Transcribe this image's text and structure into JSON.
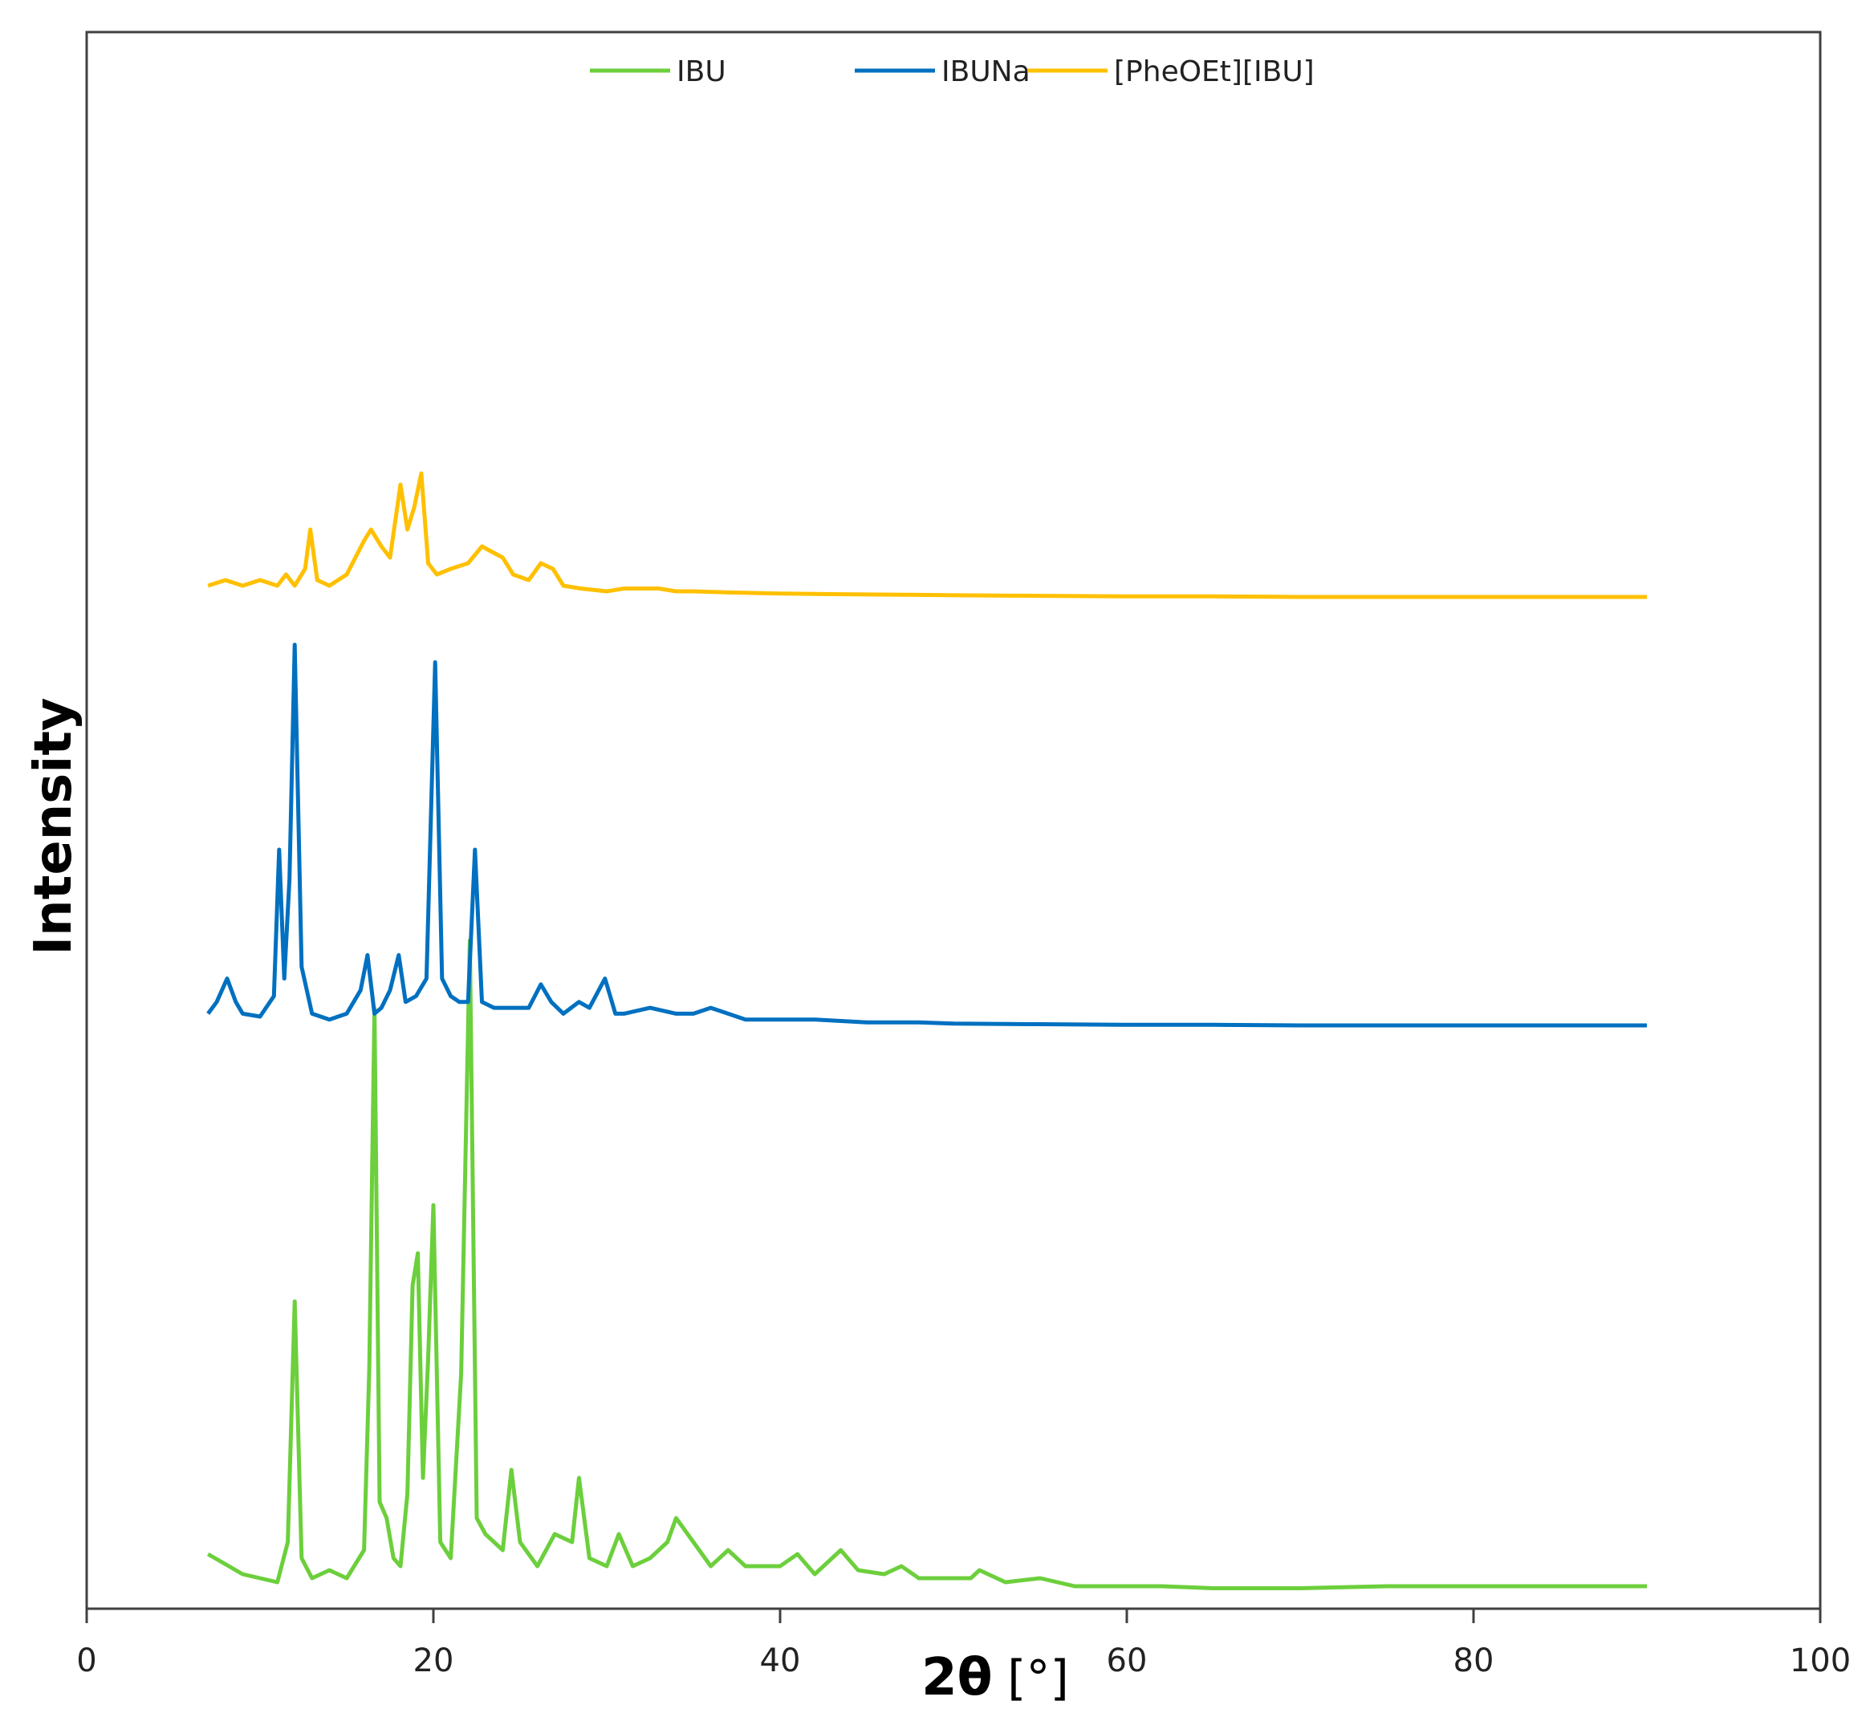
{
  "chart_data": {
    "type": "line",
    "xlabel": "2θ",
    "xunit": "[°]",
    "ylabel": "Intensity",
    "xlim": [
      0,
      100
    ],
    "xticks": [
      "0",
      "20",
      "40",
      "60",
      "80",
      "100"
    ],
    "y_tick_labels_shown": false,
    "grid": false,
    "legend_position": "top-center",
    "series": [
      {
        "name": "IBU",
        "color": "#6CCF3C",
        "x": [
          7,
          9,
          11,
          11.6,
          12.0,
          12.4,
          13,
          14,
          15,
          16,
          16.3,
          16.6,
          16.9,
          17.3,
          17.7,
          18.1,
          18.5,
          18.8,
          19.1,
          19.4,
          19.7,
          20.0,
          20.4,
          21,
          21.6,
          22.1,
          22.5,
          23,
          24,
          24.5,
          25,
          26,
          27,
          28,
          28.4,
          29,
          30,
          30.7,
          31.5,
          32.5,
          33.5,
          34,
          35,
          36,
          37,
          38,
          40,
          41,
          42,
          43.5,
          44.5,
          46,
          47,
          48,
          50,
          51,
          51.5,
          53,
          55,
          57,
          60,
          62,
          65,
          70,
          75,
          80,
          85,
          90
        ],
        "y": [
          9,
          4,
          2,
          12,
          72,
          8,
          3,
          5,
          3,
          10,
          55,
          145,
          22,
          18,
          8,
          6,
          24,
          76,
          84,
          28,
          58,
          96,
          12,
          8,
          54,
          162,
          18,
          14,
          10,
          30,
          12,
          6,
          14,
          12,
          28,
          8,
          6,
          14,
          6,
          8,
          12,
          18,
          12,
          6,
          10,
          6,
          6,
          9,
          4,
          10,
          5,
          4,
          6,
          3,
          3,
          3,
          5,
          2,
          3,
          1,
          1,
          1,
          0.5,
          0.5,
          1,
          1,
          1,
          1
        ]
      },
      {
        "name": "IBUNa",
        "color": "#0070C0",
        "x": [
          7,
          7.5,
          8.1,
          8.6,
          9,
          10,
          10.8,
          11.1,
          11.4,
          11.7,
          12.0,
          12.4,
          13,
          14,
          15,
          15.8,
          16.2,
          16.6,
          17,
          17.5,
          18.0,
          18.4,
          19,
          19.6,
          20.1,
          20.5,
          21,
          21.5,
          22,
          22.4,
          22.8,
          23.5,
          24.5,
          25.5,
          26.2,
          26.8,
          27.5,
          28.4,
          29,
          29.9,
          30.5,
          31,
          32.5,
          34,
          35,
          36,
          37,
          38,
          40,
          42,
          45,
          48,
          50,
          55,
          60,
          65,
          70,
          75,
          80,
          85,
          90
        ],
        "y": [
          2,
          4,
          8,
          4,
          2,
          1.5,
          5,
          30,
          8,
          25,
          65,
          10,
          2,
          1,
          2,
          6,
          12,
          2,
          3,
          6,
          12,
          4,
          5,
          8,
          62,
          8,
          5,
          4,
          4,
          30,
          4,
          3,
          3,
          3,
          7,
          4,
          2,
          4,
          3,
          8,
          2,
          2,
          3,
          2,
          2,
          3,
          2,
          1,
          1,
          1,
          0.5,
          0.5,
          0.3,
          0.2,
          0.1,
          0.1,
          0,
          0,
          0,
          0,
          0
        ]
      },
      {
        "name": "[PheOEt][IBU]",
        "color": "#FFC000",
        "x": [
          7,
          8,
          9,
          10,
          11,
          11.5,
          12,
          12.6,
          12.9,
          13.3,
          14,
          15,
          16,
          16.4,
          17,
          17.5,
          18.1,
          18.5,
          18.9,
          19.3,
          19.7,
          20.2,
          21,
          22,
          22.8,
          23.4,
          24,
          24.6,
          25.5,
          26.2,
          26.9,
          27.5,
          28.5,
          30,
          31,
          33,
          34,
          35,
          37,
          40,
          43,
          47,
          50,
          55,
          60,
          65,
          70,
          75,
          80,
          85,
          90
        ],
        "y": [
          2,
          3,
          2,
          3,
          2,
          4,
          2,
          5,
          12,
          3,
          2,
          4,
          10,
          12,
          9,
          7,
          20,
          12,
          16,
          22,
          6,
          4,
          5,
          6,
          9,
          8,
          7,
          4,
          3,
          6,
          5,
          2,
          1.5,
          1,
          1.5,
          1.5,
          1,
          1,
          0.8,
          0.6,
          0.5,
          0.4,
          0.3,
          0.2,
          0.1,
          0.1,
          0,
          0,
          0,
          0,
          0
        ]
      }
    ]
  }
}
